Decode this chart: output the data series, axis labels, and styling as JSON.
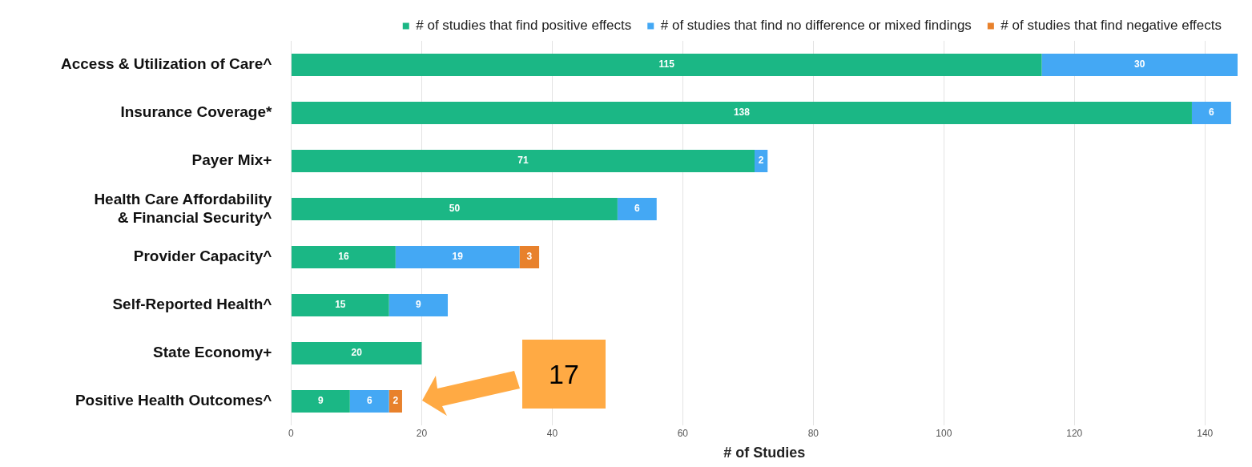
{
  "chart_data": {
    "type": "bar",
    "orientation": "horizontal",
    "stacked": true,
    "xlabel": "# of Studies",
    "categories": [
      "Access & Utilization of Care^",
      "Insurance Coverage*",
      "Payer Mix+",
      "Health Care Affordability & Financial Security^",
      "Provider Capacity^",
      "Self-Reported Health^",
      "State Economy+",
      "Positive Health Outcomes^"
    ],
    "series": [
      {
        "name": "# of studies that find positive effects",
        "color": "#1bb785",
        "values": [
          115,
          138,
          71,
          50,
          16,
          15,
          20,
          9
        ]
      },
      {
        "name": "# of studies that find no difference or mixed findings",
        "color": "#44a8f4",
        "values": [
          30,
          6,
          2,
          6,
          19,
          9,
          null,
          6
        ]
      },
      {
        "name": "# of studies that find negative effects",
        "color": "#e8812c",
        "values": [
          null,
          null,
          null,
          null,
          3,
          null,
          null,
          2
        ]
      }
    ],
    "xlim": [
      0,
      145
    ],
    "xticks": [
      0,
      20,
      40,
      60,
      80,
      100,
      120,
      140
    ],
    "grid": "x",
    "legend": "top right",
    "data_labels": true,
    "annotations": [
      "17"
    ]
  }
}
